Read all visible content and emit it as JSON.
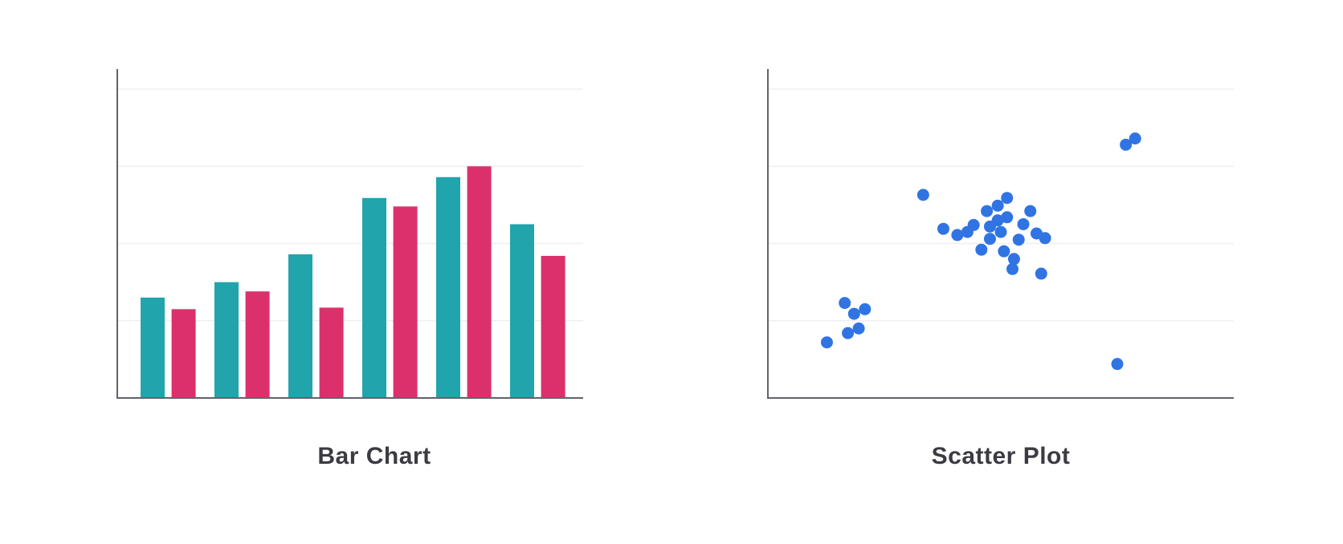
{
  "colors": {
    "series_a": "#22a4ac",
    "series_b": "#dc306c",
    "points": "#3074e4",
    "axis": "#62626c",
    "grid": "#efefef"
  },
  "chart_data": [
    {
      "type": "bar",
      "title": "Bar Chart",
      "grid": true,
      "ylim": [
        0,
        4.26
      ],
      "categories": [
        "",
        "",
        "",
        "",
        "",
        ""
      ],
      "series": [
        {
          "values": [
            1.3,
            1.5,
            1.86,
            2.59,
            2.86,
            2.25
          ]
        },
        {
          "values": [
            1.15,
            1.38,
            1.17,
            2.48,
            3.0,
            1.84
          ]
        }
      ]
    },
    {
      "type": "scatter",
      "title": "Scatter Plot",
      "grid": true,
      "xlim": [
        0,
        6
      ],
      "ylim": [
        0,
        4.26
      ],
      "points": [
        [
          2.0,
          2.63
        ],
        [
          2.26,
          2.19
        ],
        [
          2.44,
          2.11
        ],
        [
          2.57,
          2.15
        ],
        [
          2.65,
          2.24
        ],
        [
          2.82,
          2.42
        ],
        [
          2.96,
          2.49
        ],
        [
          3.08,
          2.59
        ],
        [
          2.86,
          2.22
        ],
        [
          2.96,
          2.3
        ],
        [
          3.08,
          2.34
        ],
        [
          3.0,
          2.15
        ],
        [
          2.86,
          2.06
        ],
        [
          2.75,
          1.92
        ],
        [
          3.04,
          1.9
        ],
        [
          3.17,
          1.8
        ],
        [
          3.15,
          1.67
        ],
        [
          3.23,
          2.05
        ],
        [
          3.29,
          2.25
        ],
        [
          3.38,
          2.42
        ],
        [
          3.46,
          2.13
        ],
        [
          3.57,
          2.07
        ],
        [
          3.52,
          1.61
        ],
        [
          0.99,
          1.23
        ],
        [
          1.11,
          1.09
        ],
        [
          1.25,
          1.15
        ],
        [
          1.17,
          0.9
        ],
        [
          1.03,
          0.84
        ],
        [
          0.76,
          0.72
        ],
        [
          4.61,
          3.28
        ],
        [
          4.73,
          3.36
        ],
        [
          4.5,
          0.44
        ]
      ]
    }
  ]
}
